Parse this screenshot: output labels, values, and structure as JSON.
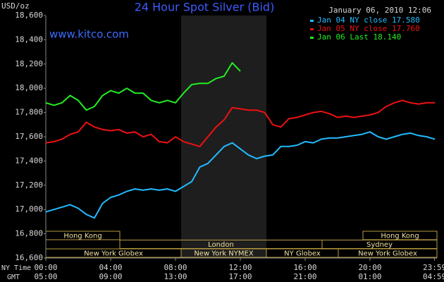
{
  "chart_data": {
    "type": "line",
    "title": "24 Hour Spot Silver (Bid)",
    "y_label": "USD/oz",
    "date_label": "January 06, 2010 12:06",
    "site": "www.kitco.com",
    "x_row_labels": [
      "NY Time",
      "GMT"
    ],
    "xlim": [
      0,
      24
    ],
    "xticks": [
      {
        "value": 0,
        "label": "00:00"
      },
      {
        "value": 4,
        "label": "04:00"
      },
      {
        "value": 8,
        "label": "08:00"
      },
      {
        "value": 12,
        "label": "12:00"
      },
      {
        "value": 16,
        "label": "16:00"
      },
      {
        "value": 20,
        "label": "20:00"
      },
      {
        "value": 23.98,
        "label": "23:59"
      }
    ],
    "x2ticks": [
      {
        "value": 0,
        "label": "05:00"
      },
      {
        "value": 4,
        "label": "09:00"
      },
      {
        "value": 8,
        "label": "13:00"
      },
      {
        "value": 12,
        "label": "17:00"
      },
      {
        "value": 16,
        "label": "21:00"
      },
      {
        "value": 20,
        "label": "01:00"
      },
      {
        "value": 23.98,
        "label": "04:59"
      }
    ],
    "ylim": [
      16600,
      18600
    ],
    "yticks": [
      {
        "value": 16600,
        "label": "16,600"
      },
      {
        "value": 16800,
        "label": "16,800"
      },
      {
        "value": 17000,
        "label": "17,000"
      },
      {
        "value": 17200,
        "label": "17,200"
      },
      {
        "value": 17400,
        "label": "17,400"
      },
      {
        "value": 17600,
        "label": "17,600"
      },
      {
        "value": 17800,
        "label": "17,800"
      },
      {
        "value": 18000,
        "label": "18,000"
      },
      {
        "value": 18200,
        "label": "18,200"
      },
      {
        "value": 18400,
        "label": "18,400"
      },
      {
        "value": 18600,
        "label": "18,600"
      }
    ],
    "grid": false,
    "legend": "top-right",
    "sessions": [
      "Hong Kong",
      "Hong Kong",
      "London",
      "Sydney",
      "New York Globex",
      "New York NYMEX",
      "NY Globex",
      "New York Globex"
    ],
    "x": [
      0,
      0.5,
      1,
      1.5,
      2,
      2.5,
      3,
      3.5,
      4,
      4.5,
      5,
      5.5,
      6,
      6.5,
      7,
      7.5,
      8,
      8.5,
      9,
      9.5,
      10,
      10.5,
      11,
      11.5,
      12,
      12.5,
      13,
      13.5,
      14,
      14.5,
      15,
      15.5,
      16,
      16.5,
      17,
      17.5,
      18,
      18.5,
      19,
      19.5,
      20,
      20.5,
      21,
      21.5,
      22,
      22.5,
      23,
      23.5,
      24
    ],
    "series": [
      {
        "name": "Jan 04 NY close 17.580",
        "color": "#22bbff",
        "values": [
          16980,
          17000,
          17020,
          17040,
          17010,
          16960,
          16930,
          17050,
          17100,
          17120,
          17150,
          17170,
          17160,
          17170,
          17160,
          17170,
          17150,
          17190,
          17230,
          17350,
          17380,
          17450,
          17520,
          17550,
          17500,
          17450,
          17420,
          17440,
          17450,
          17520,
          17520,
          17530,
          17560,
          17550,
          17580,
          17590,
          17590,
          17600,
          17610,
          17620,
          17640,
          17600,
          17580,
          17600,
          17620,
          17630,
          17610,
          17600,
          17580
        ]
      },
      {
        "name": "Jan 05 NY close 17.760",
        "color": "#ee1111",
        "values": [
          17550,
          17560,
          17580,
          17620,
          17640,
          17720,
          17680,
          17660,
          17650,
          17660,
          17630,
          17640,
          17600,
          17620,
          17560,
          17550,
          17600,
          17560,
          17540,
          17520,
          17600,
          17680,
          17740,
          17840,
          17830,
          17820,
          17820,
          17800,
          17700,
          17680,
          17750,
          17760,
          17780,
          17800,
          17810,
          17790,
          17760,
          17770,
          17760,
          17770,
          17780,
          17800,
          17850,
          17880,
          17900,
          17880,
          17870,
          17880,
          17880
        ]
      },
      {
        "name": "Jan 06 Last 18.140",
        "color": "#22ee22",
        "values": [
          17880,
          17860,
          17880,
          17940,
          17900,
          17820,
          17850,
          17940,
          17980,
          17960,
          18000,
          17960,
          17960,
          17900,
          17880,
          17900,
          17880,
          17960,
          18030,
          18040,
          18040,
          18080,
          18100,
          18210,
          18140,
          null,
          null,
          null,
          null,
          null,
          null,
          null,
          null,
          null,
          null,
          null,
          null,
          null,
          null,
          null,
          null,
          null,
          null,
          null,
          null,
          null,
          null,
          null,
          null
        ]
      }
    ]
  }
}
